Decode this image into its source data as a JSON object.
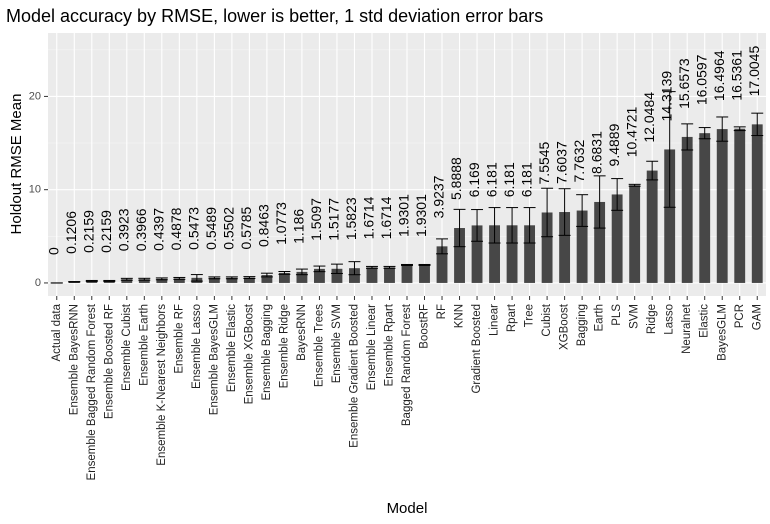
{
  "chart_data": {
    "type": "bar",
    "title": "Model accuracy by RMSE, lower is better, 1 std deviation error bars",
    "xlabel": "Model",
    "ylabel": "Holdout RMSE Mean",
    "ylim": [
      -1.4,
      26.8
    ],
    "yticks": [
      0,
      10,
      20
    ],
    "grid": true,
    "legend": "none",
    "colors": {
      "panel": "#ebebeb",
      "grid_major": "#ffffff",
      "bar": "#474747",
      "error_bar": "#000000"
    },
    "categories": [
      "Actual data",
      "Ensemble BayesRNN",
      "Ensemble Bagged Random Forest",
      "Ensemble Boosted RF",
      "Ensemble Cubist",
      "Ensemble Earth",
      "Ensemble K-Nearest Neighbors",
      "Ensemble RF",
      "Ensemble Lasso",
      "Ensemble BayesGLM",
      "Ensemble Elastic",
      "Ensemble XGBoost",
      "Ensemble Bagging",
      "Ensemble Ridge",
      "BayesRNN",
      "Ensemble Trees",
      "Ensemble SVM",
      "Ensemble Gradient Boosted",
      "Ensemble Linear",
      "Ensemble Rpart",
      "Bagged Random Forest",
      "BoostRF",
      "RF",
      "KNN",
      "Gradient Boosted",
      "Linear",
      "Rpart",
      "Tree",
      "Cubist",
      "XGBoost",
      "Bagging",
      "Earth",
      "PLS",
      "SVM",
      "Ridge",
      "Lasso",
      "Neuralnet",
      "Elastic",
      "BayesGLM",
      "PCR",
      "GAM"
    ],
    "values": [
      0,
      0.1206,
      0.2159,
      0.2159,
      0.3923,
      0.3966,
      0.4397,
      0.4878,
      0.5473,
      0.5489,
      0.5502,
      0.5785,
      0.8463,
      1.0773,
      1.186,
      1.5097,
      1.5177,
      1.5823,
      1.6714,
      1.6714,
      1.9301,
      1.9301,
      3.9237,
      5.8888,
      6.169,
      6.181,
      6.181,
      6.181,
      7.5545,
      7.6037,
      7.7632,
      8.6831,
      9.4889,
      10.4721,
      12.0484,
      14.3139,
      15.6573,
      16.0597,
      16.4964,
      16.5361,
      17.0045
    ],
    "data_labels": [
      "0",
      "0.1206",
      "0.2159",
      "0.2159",
      "0.3923",
      "0.3966",
      "0.4397",
      "0.4878",
      "0.5473",
      "0.5489",
      "0.5502",
      "0.5785",
      "0.8463",
      "1.0773",
      "1.186",
      "1.5097",
      "1.5177",
      "1.5823",
      "1.6714",
      "1.6714",
      "1.9301",
      "1.9301",
      "3.9237",
      "5.8888",
      "6.169",
      "6.181",
      "6.181",
      "6.181",
      "7.5545",
      "7.6037",
      "7.7632",
      "8.6831",
      "9.4889",
      "10.4721",
      "12.0484",
      "14.3139",
      "15.6573",
      "16.0597",
      "16.4964",
      "16.5361",
      "17.0045"
    ],
    "std": [
      0,
      0.03,
      0.05,
      0.05,
      0.1,
      0.1,
      0.1,
      0.1,
      0.35,
      0.1,
      0.1,
      0.1,
      0.2,
      0.15,
      0.3,
      0.3,
      0.5,
      0.7,
      0.1,
      0.1,
      0.05,
      0.05,
      0.8,
      2.0,
      1.7,
      1.9,
      1.9,
      1.9,
      2.6,
      2.5,
      1.7,
      2.8,
      1.7,
      0.1,
      1.0,
      6.2,
      1.4,
      0.6,
      1.3,
      0.2,
      1.2
    ]
  }
}
